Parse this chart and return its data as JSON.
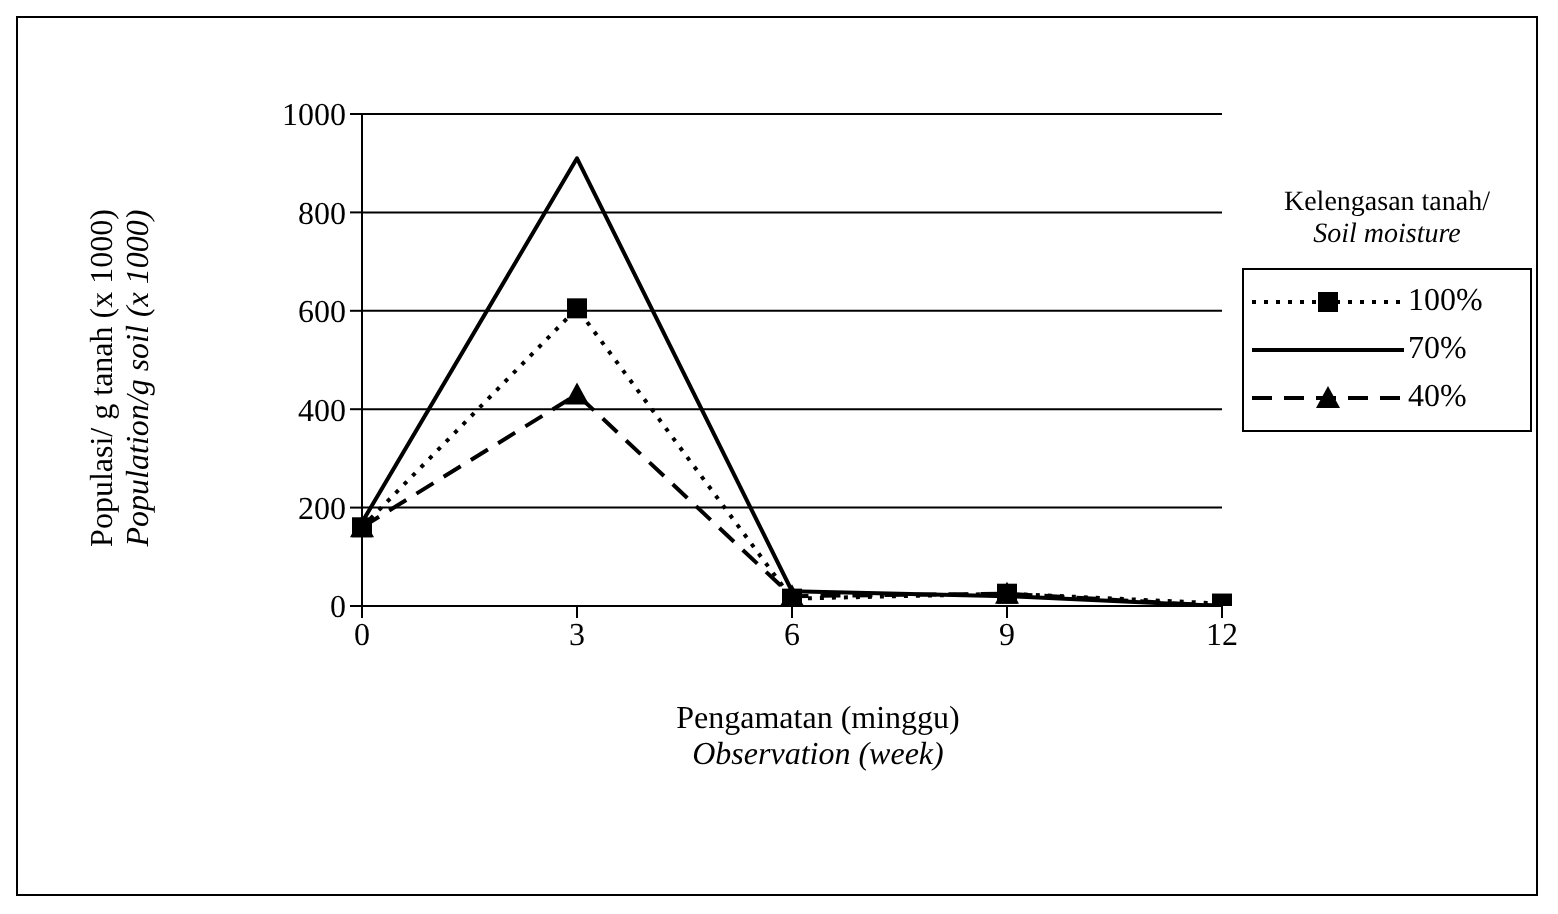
{
  "chart_data": {
    "type": "line",
    "xlabel": "Pengamatan (minggu)\nObservation (week)",
    "ylabel": "Populasi/ g tanah (x 1000)\nPopulation/g soil (x 1000)",
    "legend_title": "Kelengasan tanah/\nSoil moisture",
    "categories": [
      "0",
      "3",
      "6",
      "9",
      "12"
    ],
    "ylim": [
      0,
      1000
    ],
    "yticks": [
      0,
      200,
      400,
      600,
      800,
      1000
    ],
    "grid": "y",
    "legend": "right",
    "series": [
      {
        "name": "100%",
        "color": "#000000",
        "line_style": "dotted",
        "marker": "square",
        "values": [
          160,
          605,
          15,
          25,
          5
        ]
      },
      {
        "name": "70%",
        "color": "#000000",
        "line_style": "solid",
        "marker": "none",
        "values": [
          170,
          910,
          30,
          20,
          0
        ]
      },
      {
        "name": "40%",
        "color": "#000000",
        "line_style": "dashed",
        "marker": "triangle",
        "values": [
          160,
          430,
          20,
          25,
          0
        ]
      }
    ]
  }
}
